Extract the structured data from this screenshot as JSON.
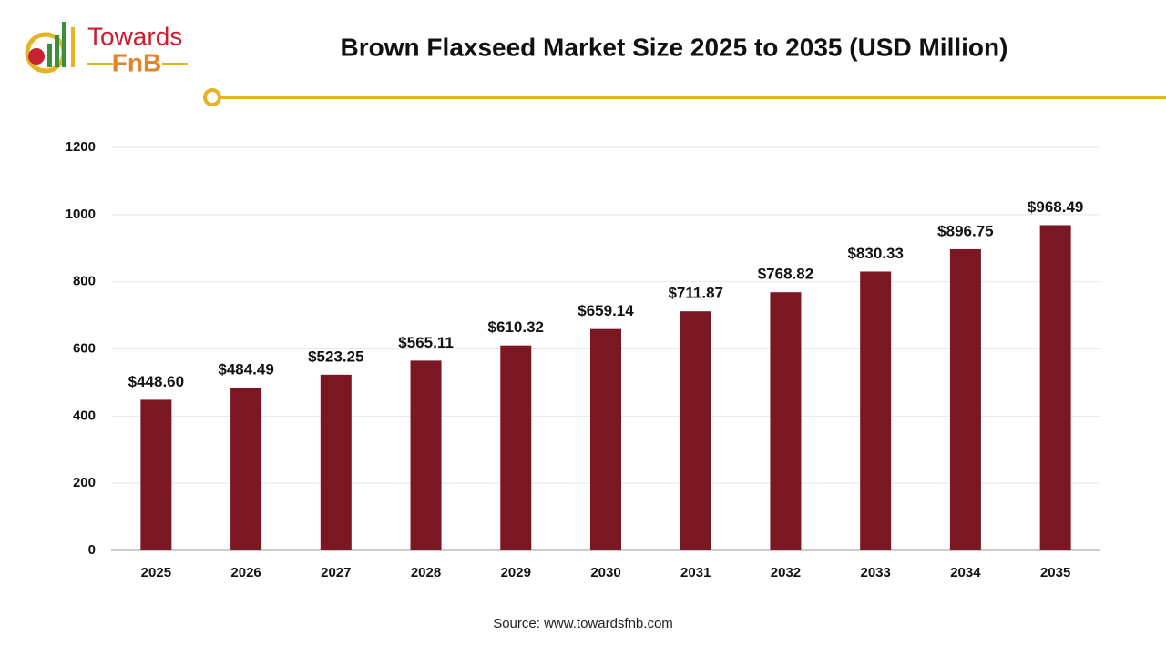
{
  "chart_data": {
    "type": "bar",
    "title": "Brown Flaxseed Market Size 2025 to 2035 (USD Million)",
    "logo": {
      "line1": "Towards",
      "line2": "FnB"
    },
    "source": "Source: www.towardsfnb.com",
    "categories": [
      "2025",
      "2026",
      "2027",
      "2028",
      "2029",
      "2030",
      "2031",
      "2032",
      "2033",
      "2034",
      "2035"
    ],
    "values": [
      448.6,
      484.49,
      523.25,
      565.11,
      610.32,
      659.14,
      711.87,
      768.82,
      830.33,
      896.75,
      968.49
    ],
    "value_labels": [
      "$448.60",
      "$484.49",
      "$523.25",
      "$565.11",
      "$610.32",
      "$659.14",
      "$711.87",
      "$768.82",
      "$830.33",
      "$896.75",
      "$968.49"
    ],
    "color": "#7b1723",
    "ylim": [
      0,
      1200
    ],
    "yticks": [
      0,
      200,
      400,
      600,
      800,
      1000,
      1200
    ],
    "grid": true
  }
}
